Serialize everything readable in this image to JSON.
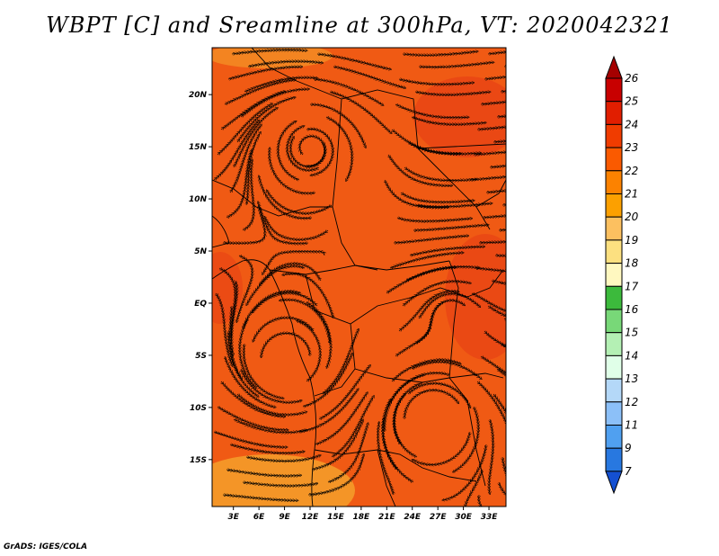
{
  "title": "WBPT [C] and Sreamline at 300hPa, VT: 2020042321",
  "credit": "GrADS: IGES/COLA",
  "map": {
    "lat_labels": [
      "20N",
      "15N",
      "10N",
      "5N",
      "EQ",
      "5S",
      "10S",
      "15S"
    ],
    "lat_values": [
      20,
      15,
      10,
      5,
      0,
      -5,
      -10,
      -15
    ],
    "lon_labels": [
      "3E",
      "6E",
      "9E",
      "12E",
      "15E",
      "18E",
      "21E",
      "24E",
      "27E",
      "30E",
      "33E"
    ],
    "lon_values": [
      3,
      6,
      9,
      12,
      15,
      18,
      21,
      24,
      27,
      30,
      33
    ],
    "extent": {
      "lon_min": 0.5,
      "lon_max": 35,
      "lat_min": -19.5,
      "lat_max": 24.5
    }
  },
  "colorbar": {
    "labels": [
      "26",
      "25",
      "24",
      "23",
      "22",
      "21",
      "20",
      "19",
      "18",
      "17",
      "16",
      "15",
      "14",
      "13",
      "12",
      "11",
      "9",
      "7"
    ],
    "colors": [
      "#a50000",
      "#c80000",
      "#e11e00",
      "#f03c00",
      "#fa5a00",
      "#fc8200",
      "#fca000",
      "#fcc060",
      "#fce080",
      "#fff8c0",
      "#3cba3c",
      "#78d878",
      "#b4f0b4",
      "#e0ffe8",
      "#b4d8f8",
      "#8cc0f8",
      "#50a0f0",
      "#2878e0",
      "#1450d2"
    ],
    "arrow_top_color": "#a50000",
    "arrow_bottom_color": "#1450d2"
  },
  "field": {
    "base_color": "#f05a14",
    "warm_color": "#e63c14",
    "cool_color": "#f5a02a"
  }
}
